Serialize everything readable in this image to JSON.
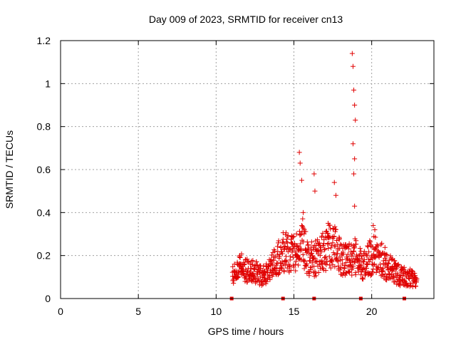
{
  "chart_data": {
    "type": "scatter",
    "title": "Day 009 of 2023, SRMTID for receiver cn13",
    "xlabel": "GPS time / hours",
    "ylabel": "SRMTID / TECUs",
    "xlim": [
      0,
      24
    ],
    "ylim": [
      0,
      1.2
    ],
    "xticks": [
      0,
      5,
      10,
      15,
      20
    ],
    "xtick_labels": [
      "0",
      "5",
      "10",
      "15",
      "20"
    ],
    "yticks": [
      0,
      0.2,
      0.4,
      0.6,
      0.8,
      1.0,
      1.2
    ],
    "ytick_labels": [
      "0",
      "0.2",
      "0.4",
      "0.6",
      "0.8",
      "1",
      "1.2"
    ],
    "grid": true,
    "marker": "+",
    "color": "#e00000",
    "data_range_hours": [
      11.0,
      22.9
    ],
    "envelope": [
      {
        "x": 11.0,
        "y": 0.1
      },
      {
        "x": 11.5,
        "y": 0.15
      },
      {
        "x": 12.0,
        "y": 0.13
      },
      {
        "x": 12.5,
        "y": 0.12
      },
      {
        "x": 13.0,
        "y": 0.11
      },
      {
        "x": 13.5,
        "y": 0.13
      },
      {
        "x": 14.0,
        "y": 0.2
      },
      {
        "x": 14.5,
        "y": 0.22
      },
      {
        "x": 15.0,
        "y": 0.2
      },
      {
        "x": 15.5,
        "y": 0.27
      },
      {
        "x": 16.0,
        "y": 0.18
      },
      {
        "x": 16.5,
        "y": 0.19
      },
      {
        "x": 17.0,
        "y": 0.22
      },
      {
        "x": 17.5,
        "y": 0.25
      },
      {
        "x": 18.0,
        "y": 0.2
      },
      {
        "x": 18.5,
        "y": 0.18
      },
      {
        "x": 19.0,
        "y": 0.2
      },
      {
        "x": 19.5,
        "y": 0.15
      },
      {
        "x": 20.0,
        "y": 0.2
      },
      {
        "x": 20.5,
        "y": 0.2
      },
      {
        "x": 21.0,
        "y": 0.15
      },
      {
        "x": 21.5,
        "y": 0.12
      },
      {
        "x": 22.0,
        "y": 0.1
      },
      {
        "x": 22.5,
        "y": 0.1
      },
      {
        "x": 22.9,
        "y": 0.07
      }
    ],
    "peaks": [
      {
        "x": 15.35,
        "y": 0.68
      },
      {
        "x": 15.4,
        "y": 0.63
      },
      {
        "x": 15.5,
        "y": 0.55
      },
      {
        "x": 15.6,
        "y": 0.4
      },
      {
        "x": 16.3,
        "y": 0.58
      },
      {
        "x": 16.35,
        "y": 0.5
      },
      {
        "x": 17.2,
        "y": 0.35
      },
      {
        "x": 17.6,
        "y": 0.54
      },
      {
        "x": 17.7,
        "y": 0.48
      },
      {
        "x": 18.75,
        "y": 1.14
      },
      {
        "x": 18.8,
        "y": 1.08
      },
      {
        "x": 18.85,
        "y": 0.97
      },
      {
        "x": 18.9,
        "y": 0.9
      },
      {
        "x": 18.95,
        "y": 0.83
      },
      {
        "x": 18.8,
        "y": 0.72
      },
      {
        "x": 18.9,
        "y": 0.65
      },
      {
        "x": 18.85,
        "y": 0.58
      },
      {
        "x": 18.9,
        "y": 0.43
      },
      {
        "x": 20.1,
        "y": 0.34
      },
      {
        "x": 20.2,
        "y": 0.32
      }
    ],
    "gap_markers_x": [
      11.0,
      14.3,
      16.3,
      19.3,
      22.1
    ]
  }
}
